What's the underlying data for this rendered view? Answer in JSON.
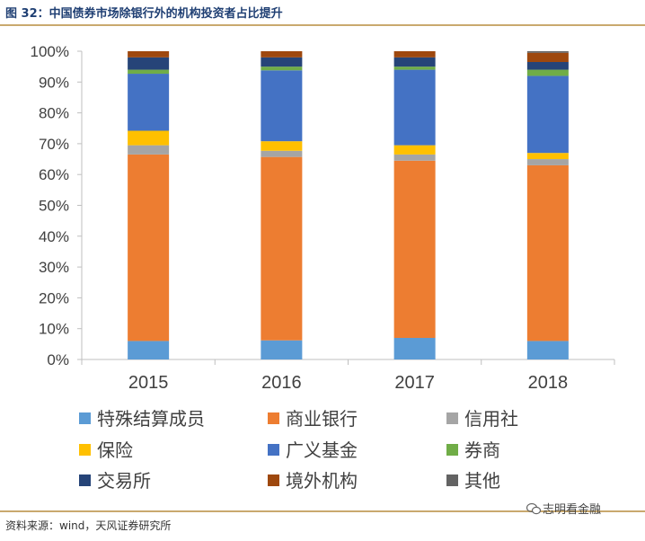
{
  "header": {
    "title": "图 32：中国债券市场除银行外的机构投资者占比提升"
  },
  "footer": {
    "source": "资料来源：wind，天风证券研究所",
    "watermark": "志明看金融",
    "watermark_icon": "wechat-icon"
  },
  "colors": {
    "特殊结算成员": "#5b9bd5",
    "商业银行": "#ed7d31",
    "信用社": "#a5a5a5",
    "保险": "#ffc000",
    "广义基金": "#4472c4",
    "券商": "#70ad47",
    "交易所": "#264478",
    "境外机构": "#9e480e",
    "其他": "#636363"
  },
  "chart_data": {
    "type": "bar",
    "stacked": true,
    "title": "",
    "xlabel": "",
    "ylabel": "",
    "ylim": [
      0,
      100
    ],
    "y_ticks": [
      "0%",
      "10%",
      "20%",
      "30%",
      "40%",
      "50%",
      "60%",
      "70%",
      "80%",
      "90%",
      "100%"
    ],
    "categories": [
      "2015",
      "2016",
      "2017",
      "2018"
    ],
    "legend_position": "bottom",
    "grid": false,
    "series": [
      {
        "name": "特殊结算成员",
        "values": [
          6.0,
          6.2,
          7.0,
          6.0
        ]
      },
      {
        "name": "商业银行",
        "values": [
          60.5,
          59.5,
          57.5,
          57.0
        ]
      },
      {
        "name": "信用社",
        "values": [
          3.0,
          2.0,
          2.0,
          2.0
        ]
      },
      {
        "name": "保险",
        "values": [
          4.7,
          3.1,
          3.0,
          2.0
        ]
      },
      {
        "name": "广义基金",
        "values": [
          18.5,
          23.0,
          24.5,
          25.0
        ]
      },
      {
        "name": "券商",
        "values": [
          1.3,
          1.2,
          1.0,
          2.0
        ]
      },
      {
        "name": "交易所",
        "values": [
          4.0,
          3.0,
          3.0,
          2.5
        ]
      },
      {
        "name": "境外机构",
        "values": [
          2.0,
          2.0,
          2.0,
          3.0
        ]
      },
      {
        "name": "其他",
        "values": [
          0.0,
          0.0,
          0.0,
          0.5
        ]
      }
    ]
  }
}
